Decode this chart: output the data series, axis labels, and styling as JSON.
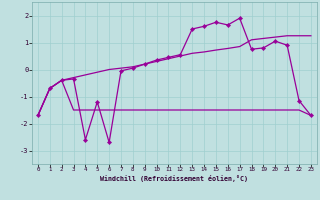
{
  "xlabel": "Windchill (Refroidissement éolien,°C)",
  "bg_color": "#c0e0e0",
  "line_color": "#990099",
  "xlim": [
    -0.5,
    23.5
  ],
  "ylim": [
    -3.5,
    2.5
  ],
  "xticks": [
    0,
    1,
    2,
    3,
    4,
    5,
    6,
    7,
    8,
    9,
    10,
    11,
    12,
    13,
    14,
    15,
    16,
    17,
    18,
    19,
    20,
    21,
    22,
    23
  ],
  "yticks": [
    -3,
    -2,
    -1,
    0,
    1,
    2
  ],
  "series1_x": [
    0,
    1,
    2,
    3,
    4,
    5,
    6,
    7,
    8,
    9,
    10,
    11,
    12,
    13,
    14,
    15,
    16,
    17,
    18,
    19,
    20,
    21,
    22,
    23
  ],
  "series1_y": [
    -1.7,
    -0.7,
    -0.4,
    -0.35,
    -2.6,
    -1.2,
    -2.7,
    -0.05,
    0.05,
    0.2,
    0.35,
    0.45,
    0.55,
    1.5,
    1.6,
    1.75,
    1.65,
    1.9,
    0.75,
    0.8,
    1.05,
    0.9,
    -1.15,
    -1.7
  ],
  "series2_x": [
    0,
    1,
    2,
    3,
    4,
    5,
    6,
    7,
    8,
    9,
    10,
    11,
    12,
    13,
    14,
    15,
    16,
    17,
    18,
    19,
    20,
    21,
    22,
    23
  ],
  "series2_y": [
    -1.7,
    -0.7,
    -0.4,
    -1.5,
    -1.5,
    -1.5,
    -1.5,
    -1.5,
    -1.5,
    -1.5,
    -1.5,
    -1.5,
    -1.5,
    -1.5,
    -1.5,
    -1.5,
    -1.5,
    -1.5,
    -1.5,
    -1.5,
    -1.5,
    -1.5,
    -1.5,
    -1.7
  ],
  "series3_x": [
    0,
    1,
    2,
    3,
    4,
    5,
    6,
    7,
    8,
    9,
    10,
    11,
    12,
    13,
    14,
    15,
    16,
    17,
    18,
    19,
    20,
    21,
    22,
    23
  ],
  "series3_y": [
    -1.7,
    -0.7,
    -0.4,
    -0.3,
    -0.2,
    -0.1,
    0.0,
    0.05,
    0.1,
    0.2,
    0.3,
    0.4,
    0.5,
    0.6,
    0.65,
    0.72,
    0.78,
    0.85,
    1.1,
    1.15,
    1.2,
    1.25,
    1.25,
    1.25
  ]
}
